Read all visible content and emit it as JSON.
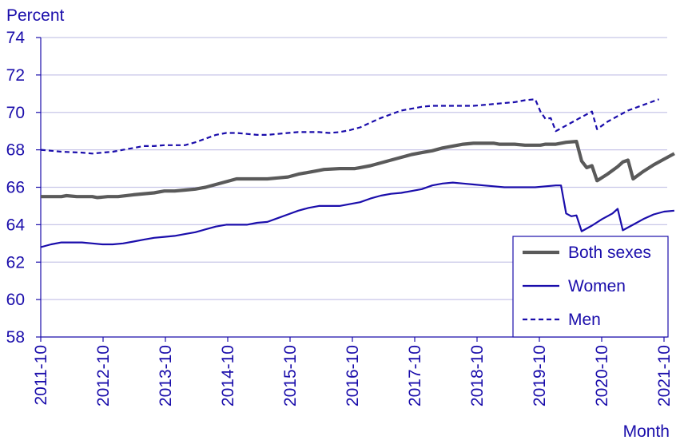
{
  "chart_data": {
    "type": "line",
    "title": "",
    "ylabel": "Percent",
    "xlabel": "Month",
    "ylim": [
      58,
      74
    ],
    "yticks": [
      58,
      60,
      62,
      64,
      66,
      68,
      70,
      72,
      74
    ],
    "grid": "horizontal",
    "legend_placement": "bottom-right",
    "xlim_index": [
      0,
      120
    ],
    "xtick_labels": [
      "2011-10",
      "2012-10",
      "2013-10",
      "2014-10",
      "2015-10",
      "2016-10",
      "2017-10",
      "2018-10",
      "2019-10",
      "2020-10",
      "2021-10"
    ],
    "x_note_unit": "months since 2011-10",
    "series": [
      {
        "name": "Both sexes",
        "style": "thick-solid",
        "color": "#5a5a5a",
        "points": [
          [
            0,
            65.5
          ],
          [
            4,
            65.5
          ],
          [
            5,
            65.55
          ],
          [
            7,
            65.5
          ],
          [
            10,
            65.5
          ],
          [
            11,
            65.45
          ],
          [
            13,
            65.5
          ],
          [
            15,
            65.5
          ],
          [
            18,
            65.6
          ],
          [
            22,
            65.7
          ],
          [
            24,
            65.8
          ],
          [
            26,
            65.8
          ],
          [
            28,
            65.85
          ],
          [
            30,
            65.9
          ],
          [
            32,
            66.0
          ],
          [
            34,
            66.15
          ],
          [
            36,
            66.3
          ],
          [
            38,
            66.45
          ],
          [
            44,
            66.45
          ],
          [
            46,
            66.5
          ],
          [
            48,
            66.55
          ],
          [
            50,
            66.7
          ],
          [
            52,
            66.8
          ],
          [
            54,
            66.9
          ],
          [
            55,
            66.95
          ],
          [
            58,
            67.0
          ],
          [
            61,
            67.0
          ],
          [
            62,
            67.05
          ],
          [
            64,
            67.15
          ],
          [
            66,
            67.3
          ],
          [
            68,
            67.45
          ],
          [
            70,
            67.6
          ],
          [
            72,
            67.75
          ],
          [
            74,
            67.85
          ],
          [
            76,
            67.95
          ],
          [
            78,
            68.1
          ],
          [
            80,
            68.2
          ],
          [
            82,
            68.3
          ],
          [
            84,
            68.35
          ],
          [
            88,
            68.35
          ],
          [
            89,
            68.3
          ],
          [
            92,
            68.3
          ],
          [
            94,
            68.25
          ],
          [
            97,
            68.25
          ],
          [
            98,
            68.3
          ],
          [
            100,
            68.3
          ],
          [
            102,
            68.4
          ],
          [
            104,
            68.45
          ],
          [
            105,
            67.4
          ],
          [
            106,
            67.05
          ],
          [
            107,
            67.15
          ],
          [
            108,
            66.35
          ],
          [
            110,
            66.7
          ],
          [
            112,
            67.1
          ],
          [
            113,
            67.35
          ],
          [
            114,
            67.45
          ],
          [
            115,
            66.45
          ],
          [
            117,
            66.85
          ],
          [
            119,
            67.2
          ],
          [
            121,
            67.5
          ],
          [
            123,
            67.8
          ]
        ]
      },
      {
        "name": "Women",
        "style": "solid",
        "color": "#1a0dab",
        "points": [
          [
            0,
            62.8
          ],
          [
            2,
            62.95
          ],
          [
            4,
            63.05
          ],
          [
            8,
            63.05
          ],
          [
            10,
            63.0
          ],
          [
            12,
            62.95
          ],
          [
            14,
            62.95
          ],
          [
            16,
            63.0
          ],
          [
            18,
            63.1
          ],
          [
            20,
            63.2
          ],
          [
            22,
            63.3
          ],
          [
            24,
            63.35
          ],
          [
            26,
            63.4
          ],
          [
            28,
            63.5
          ],
          [
            30,
            63.6
          ],
          [
            32,
            63.75
          ],
          [
            34,
            63.9
          ],
          [
            36,
            64.0
          ],
          [
            38,
            64.0
          ],
          [
            40,
            64.0
          ],
          [
            42,
            64.1
          ],
          [
            44,
            64.15
          ],
          [
            46,
            64.35
          ],
          [
            48,
            64.55
          ],
          [
            50,
            64.75
          ],
          [
            52,
            64.9
          ],
          [
            54,
            65.0
          ],
          [
            58,
            65.0
          ],
          [
            60,
            65.1
          ],
          [
            62,
            65.2
          ],
          [
            64,
            65.4
          ],
          [
            66,
            65.55
          ],
          [
            68,
            65.65
          ],
          [
            70,
            65.7
          ],
          [
            72,
            65.8
          ],
          [
            74,
            65.9
          ],
          [
            76,
            66.1
          ],
          [
            78,
            66.2
          ],
          [
            80,
            66.25
          ],
          [
            82,
            66.2
          ],
          [
            84,
            66.15
          ],
          [
            86,
            66.1
          ],
          [
            88,
            66.05
          ],
          [
            90,
            66.0
          ],
          [
            96,
            66.0
          ],
          [
            98,
            66.05
          ],
          [
            100,
            66.1
          ],
          [
            101,
            66.1
          ],
          [
            102,
            64.6
          ],
          [
            103,
            64.45
          ],
          [
            104,
            64.5
          ],
          [
            105,
            63.65
          ],
          [
            107,
            63.95
          ],
          [
            109,
            64.3
          ],
          [
            111,
            64.6
          ],
          [
            112,
            64.85
          ],
          [
            113,
            63.7
          ],
          [
            115,
            64.0
          ],
          [
            117,
            64.3
          ],
          [
            119,
            64.55
          ],
          [
            121,
            64.7
          ],
          [
            123,
            64.75
          ]
        ]
      },
      {
        "name": "Men",
        "style": "dashed",
        "color": "#1a0dab",
        "points": [
          [
            0,
            68.0
          ],
          [
            2,
            67.95
          ],
          [
            4,
            67.9
          ],
          [
            8,
            67.85
          ],
          [
            10,
            67.8
          ],
          [
            12,
            67.85
          ],
          [
            14,
            67.9
          ],
          [
            16,
            68.0
          ],
          [
            18,
            68.1
          ],
          [
            20,
            68.2
          ],
          [
            22,
            68.2
          ],
          [
            24,
            68.25
          ],
          [
            28,
            68.25
          ],
          [
            30,
            68.4
          ],
          [
            32,
            68.6
          ],
          [
            34,
            68.8
          ],
          [
            36,
            68.9
          ],
          [
            38,
            68.9
          ],
          [
            40,
            68.85
          ],
          [
            42,
            68.8
          ],
          [
            44,
            68.8
          ],
          [
            46,
            68.85
          ],
          [
            48,
            68.9
          ],
          [
            50,
            68.95
          ],
          [
            54,
            68.95
          ],
          [
            56,
            68.9
          ],
          [
            58,
            68.95
          ],
          [
            60,
            69.05
          ],
          [
            62,
            69.2
          ],
          [
            64,
            69.45
          ],
          [
            66,
            69.7
          ],
          [
            68,
            69.9
          ],
          [
            70,
            70.1
          ],
          [
            72,
            70.2
          ],
          [
            74,
            70.3
          ],
          [
            76,
            70.35
          ],
          [
            80,
            70.35
          ],
          [
            84,
            70.35
          ],
          [
            86,
            70.4
          ],
          [
            88,
            70.45
          ],
          [
            90,
            70.5
          ],
          [
            92,
            70.55
          ],
          [
            94,
            70.65
          ],
          [
            96,
            70.7
          ],
          [
            97,
            70.05
          ],
          [
            98,
            69.65
          ],
          [
            99,
            69.7
          ],
          [
            100,
            69.0
          ],
          [
            102,
            69.3
          ],
          [
            104,
            69.6
          ],
          [
            106,
            69.9
          ],
          [
            107,
            70.05
          ],
          [
            108,
            69.1
          ],
          [
            110,
            69.5
          ],
          [
            112,
            69.8
          ],
          [
            114,
            70.1
          ],
          [
            116,
            70.3
          ],
          [
            118,
            70.5
          ],
          [
            120,
            70.7
          ]
        ]
      }
    ]
  }
}
